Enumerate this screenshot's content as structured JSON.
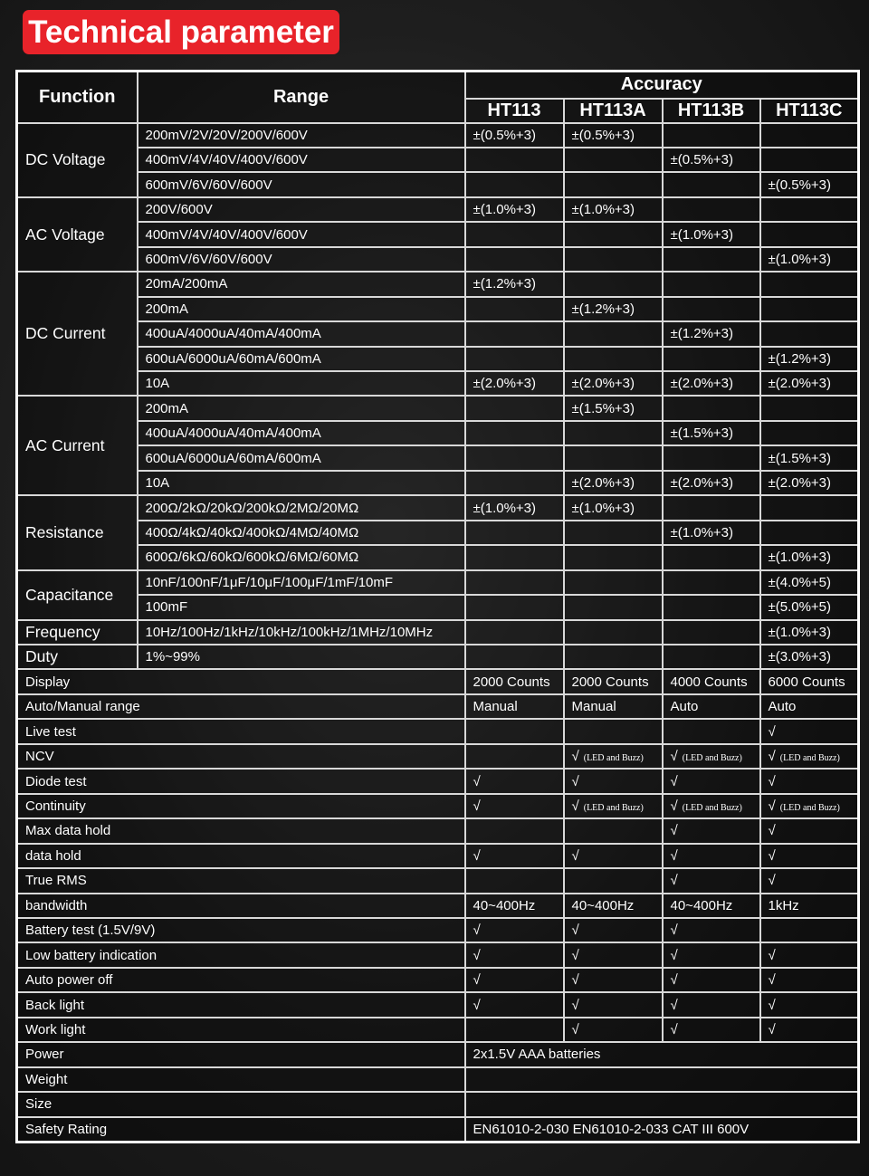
{
  "header": {
    "title": "Technical parameter"
  },
  "table": {
    "columns": {
      "function": "Function",
      "range": "Range",
      "accuracy": "Accuracy",
      "models": [
        "HT113",
        "HT113A",
        "HT113B",
        "HT113C"
      ]
    },
    "measurements": [
      {
        "function": "DC Voltage",
        "rows": [
          {
            "range": "200mV/2V/20V/200V/600V",
            "values": [
              "±(0.5%+3)",
              "±(0.5%+3)",
              null,
              null
            ]
          },
          {
            "range": "400mV/4V/40V/400V/600V",
            "values": [
              null,
              null,
              "±(0.5%+3)",
              null
            ]
          },
          {
            "range": "600mV/6V/60V/600V",
            "values": [
              null,
              null,
              null,
              "±(0.5%+3)"
            ]
          }
        ]
      },
      {
        "function": "AC Voltage",
        "rows": [
          {
            "range": "200V/600V",
            "values": [
              "±(1.0%+3)",
              "±(1.0%+3)",
              null,
              null
            ]
          },
          {
            "range": "400mV/4V/40V/400V/600V",
            "values": [
              null,
              null,
              "±(1.0%+3)",
              null
            ]
          },
          {
            "range": "600mV/6V/60V/600V",
            "values": [
              null,
              null,
              null,
              "±(1.0%+3)"
            ]
          }
        ]
      },
      {
        "function": "DC Current",
        "rows": [
          {
            "range": "20mA/200mA",
            "values": [
              "±(1.2%+3)",
              null,
              null,
              null
            ]
          },
          {
            "range": "200mA",
            "values": [
              null,
              "±(1.2%+3)",
              null,
              null
            ]
          },
          {
            "range": "400uA/4000uA/40mA/400mA",
            "values": [
              null,
              null,
              "±(1.2%+3)",
              null
            ]
          },
          {
            "range": "600uA/6000uA/60mA/600mA",
            "values": [
              null,
              null,
              null,
              "±(1.2%+3)"
            ]
          },
          {
            "range": "10A",
            "values": [
              "±(2.0%+3)",
              "±(2.0%+3)",
              "±(2.0%+3)",
              "±(2.0%+3)"
            ]
          }
        ]
      },
      {
        "function": "AC Current",
        "rows": [
          {
            "range": "200mA",
            "values": [
              null,
              "±(1.5%+3)",
              null,
              null
            ]
          },
          {
            "range": "400uA/4000uA/40mA/400mA",
            "values": [
              null,
              null,
              "±(1.5%+3)",
              null
            ]
          },
          {
            "range": "600uA/6000uA/60mA/600mA",
            "values": [
              null,
              null,
              null,
              "±(1.5%+3)"
            ]
          },
          {
            "range": "10A",
            "values": [
              null,
              "±(2.0%+3)",
              "±(2.0%+3)",
              "±(2.0%+3)"
            ]
          }
        ]
      },
      {
        "function": "Resistance",
        "rows": [
          {
            "range": "200Ω/2kΩ/20kΩ/200kΩ/2MΩ/20MΩ",
            "values": [
              "±(1.0%+3)",
              "±(1.0%+3)",
              null,
              null
            ]
          },
          {
            "range": "400Ω/4kΩ/40kΩ/400kΩ/4MΩ/40MΩ",
            "values": [
              null,
              null,
              "±(1.0%+3)",
              null
            ]
          },
          {
            "range": "600Ω/6kΩ/60kΩ/600kΩ/6MΩ/60MΩ",
            "values": [
              null,
              null,
              null,
              "±(1.0%+3)"
            ]
          }
        ]
      },
      {
        "function": "Capacitance",
        "rows": [
          {
            "range": "10nF/100nF/1μF/10μF/100μF/1mF/10mF",
            "values": [
              null,
              null,
              null,
              "±(4.0%+5)"
            ]
          },
          {
            "range": "100mF",
            "values": [
              null,
              null,
              null,
              "±(5.0%+5)"
            ]
          }
        ]
      },
      {
        "function": "Frequency",
        "rows": [
          {
            "range": "10Hz/100Hz/1kHz/10kHz/100kHz/1MHz/10MHz",
            "values": [
              null,
              null,
              null,
              "±(1.0%+3)"
            ]
          }
        ]
      },
      {
        "function": "Duty",
        "rows": [
          {
            "range": "1%~99%",
            "values": [
              null,
              null,
              null,
              "±(3.0%+3)"
            ]
          }
        ]
      }
    ],
    "features": [
      {
        "name": "Display",
        "values": [
          "2000 Counts",
          "2000 Counts",
          "4000 Counts",
          "6000 Counts"
        ]
      },
      {
        "name": "Auto/Manual range",
        "values": [
          "Manual",
          "Manual",
          "Auto",
          "Auto"
        ]
      },
      {
        "name": "Live test",
        "values": [
          null,
          null,
          null,
          "√"
        ]
      },
      {
        "name": "NCV",
        "values": [
          null,
          {
            "mark": "√",
            "note": "(LED and Buzz)"
          },
          {
            "mark": "√",
            "note": "(LED and Buzz)"
          },
          {
            "mark": "√",
            "note": "(LED and Buzz)"
          }
        ]
      },
      {
        "name": "Diode test",
        "values": [
          "√",
          "√",
          "√",
          "√"
        ]
      },
      {
        "name": "Continuity",
        "values": [
          "√",
          {
            "mark": "√",
            "note": "(LED and Buzz)"
          },
          {
            "mark": "√",
            "note": "(LED and Buzz)"
          },
          {
            "mark": "√",
            "note": "(LED and Buzz)"
          }
        ]
      },
      {
        "name": "Max data hold",
        "values": [
          null,
          null,
          "√",
          "√"
        ]
      },
      {
        "name": "data hold",
        "values": [
          "√",
          "√",
          "√",
          "√"
        ]
      },
      {
        "name": "True RMS",
        "values": [
          null,
          null,
          "√",
          "√"
        ]
      },
      {
        "name": "bandwidth",
        "values": [
          "40~400Hz",
          "40~400Hz",
          "40~400Hz",
          "1kHz"
        ]
      },
      {
        "name": "Battery test (1.5V/9V)",
        "values": [
          "√",
          "√",
          "√",
          null
        ]
      },
      {
        "name": "Low battery indication",
        "values": [
          "√",
          "√",
          "√",
          "√"
        ]
      },
      {
        "name": "Auto power off",
        "values": [
          "√",
          "√",
          "√",
          "√"
        ]
      },
      {
        "name": "Back light",
        "values": [
          "√",
          "√",
          "√",
          "√"
        ]
      },
      {
        "name": "Work light",
        "values": [
          null,
          "√",
          "√",
          "√"
        ]
      },
      {
        "name": "Power",
        "value": "2x1.5V AAA batteries"
      },
      {
        "name": "Weight",
        "value": null
      },
      {
        "name": "Size",
        "value": null
      },
      {
        "name": "Safety Rating",
        "value": "EN61010-2-030 EN61010-2-033 CAT III 600V"
      }
    ]
  }
}
